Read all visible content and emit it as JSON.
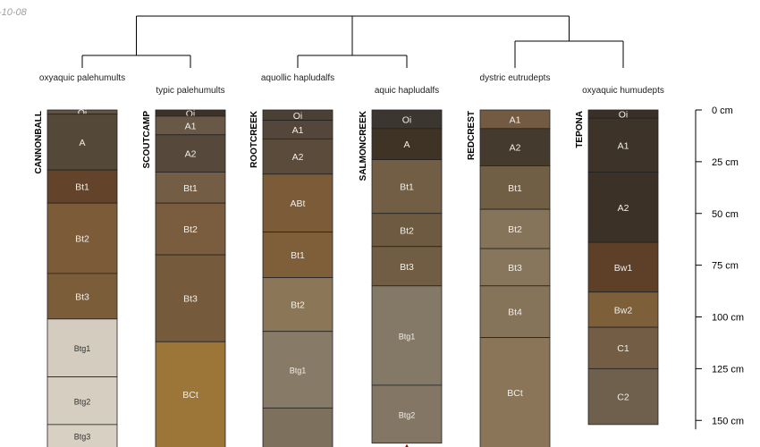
{
  "date_stamp": "-10-08",
  "axis": {
    "unit": "cm",
    "ticks": [
      {
        "depth": 0,
        "label": "0 cm"
      },
      {
        "depth": 25,
        "label": "25 cm"
      },
      {
        "depth": 50,
        "label": "50 cm"
      },
      {
        "depth": 75,
        "label": "75 cm"
      },
      {
        "depth": 100,
        "label": "100 cm"
      },
      {
        "depth": 125,
        "label": "125 cm"
      },
      {
        "depth": 150,
        "label": "150 cm"
      }
    ]
  },
  "taxa": [
    {
      "name": "oxyaquic palehumults"
    },
    {
      "name": "typic palehumults"
    },
    {
      "name": "aquollic hapludalfs"
    },
    {
      "name": "aquic hapludalfs"
    },
    {
      "name": "dystric eutrudepts"
    },
    {
      "name": "oxyaquic humudepts"
    }
  ],
  "profiles": [
    {
      "id": "CANNONBALL",
      "horizons": [
        {
          "name": "Oi",
          "top": 0,
          "bottom": 2,
          "color": "#5f5446"
        },
        {
          "name": "A",
          "top": 2,
          "bottom": 29,
          "color": "#544838"
        },
        {
          "name": "Bt1",
          "top": 29,
          "bottom": 45,
          "color": "#63432a"
        },
        {
          "name": "Bt2",
          "top": 45,
          "bottom": 79,
          "color": "#7c5c38"
        },
        {
          "name": "Bt3",
          "top": 79,
          "bottom": 101,
          "color": "#7b5d3a"
        },
        {
          "name": "Btg1",
          "top": 101,
          "bottom": 129,
          "color": "#d4cdbf"
        },
        {
          "name": "Btg2",
          "top": 129,
          "bottom": 152,
          "color": "#d6cfc1"
        },
        {
          "name": "Btg3",
          "top": 152,
          "bottom": 170,
          "color": "#d8d1c3"
        }
      ]
    },
    {
      "id": "SCOUTCAMP",
      "horizons": [
        {
          "name": "Oi",
          "top": 0,
          "bottom": 3,
          "color": "#3c3228"
        },
        {
          "name": "A1",
          "top": 3,
          "bottom": 12,
          "color": "#6a5846"
        },
        {
          "name": "A2",
          "top": 12,
          "bottom": 30,
          "color": "#56483a"
        },
        {
          "name": "Bt1",
          "top": 30,
          "bottom": 45,
          "color": "#735e45"
        },
        {
          "name": "Bt2",
          "top": 45,
          "bottom": 70,
          "color": "#7a5d3e"
        },
        {
          "name": "Bt3",
          "top": 70,
          "bottom": 112,
          "color": "#755b3c"
        },
        {
          "name": "BCt",
          "top": 112,
          "bottom": 170,
          "color": "#9c7538"
        }
      ]
    },
    {
      "id": "ROOTCREEK",
      "horizons": [
        {
          "name": "Oi",
          "top": 0,
          "bottom": 5,
          "color": "#4b4034"
        },
        {
          "name": "A1",
          "top": 5,
          "bottom": 14,
          "color": "#54463a"
        },
        {
          "name": "A2",
          "top": 14,
          "bottom": 31,
          "color": "#5a4b3b"
        },
        {
          "name": "ABt",
          "top": 31,
          "bottom": 59,
          "color": "#7c5c38"
        },
        {
          "name": "Bt1",
          "top": 59,
          "bottom": 81,
          "color": "#7f5e3a"
        },
        {
          "name": "Bt2",
          "top": 81,
          "bottom": 107,
          "color": "#8c7658"
        },
        {
          "name": "Btg1",
          "top": 107,
          "bottom": 144,
          "color": "#877a66"
        },
        {
          "name": "",
          "top": 144,
          "bottom": 170,
          "color": "#7d705c"
        }
      ]
    },
    {
      "id": "SALMONCREEK",
      "horizons": [
        {
          "name": "Oi",
          "top": 0,
          "bottom": 9,
          "color": "#3c3630"
        },
        {
          "name": "A",
          "top": 9,
          "bottom": 24,
          "color": "#3f3326"
        },
        {
          "name": "Bt1",
          "top": 24,
          "bottom": 50,
          "color": "#715e44"
        },
        {
          "name": "Bt2",
          "top": 50,
          "bottom": 66,
          "color": "#6d5a40"
        },
        {
          "name": "Bt3",
          "top": 66,
          "bottom": 85,
          "color": "#705d43"
        },
        {
          "name": "Btg1",
          "top": 85,
          "bottom": 133,
          "color": "#847866"
        },
        {
          "name": "Btg2",
          "top": 133,
          "bottom": 161,
          "color": "#837664"
        }
      ]
    },
    {
      "id": "REDCREST",
      "horizons": [
        {
          "name": "A1",
          "top": 0,
          "bottom": 9,
          "color": "#725a43"
        },
        {
          "name": "A2",
          "top": 9,
          "bottom": 27,
          "color": "#453a2e"
        },
        {
          "name": "Bt1",
          "top": 27,
          "bottom": 48,
          "color": "#705f45"
        },
        {
          "name": "Bt2",
          "top": 48,
          "bottom": 67,
          "color": "#85735a"
        },
        {
          "name": "Bt3",
          "top": 67,
          "bottom": 85,
          "color": "#87765c"
        },
        {
          "name": "Bt4",
          "top": 85,
          "bottom": 110,
          "color": "#86745a"
        },
        {
          "name": "BCt",
          "top": 110,
          "bottom": 170,
          "color": "#8a7558"
        }
      ]
    },
    {
      "id": "TEPONA",
      "horizons": [
        {
          "name": "Oi",
          "top": 0,
          "bottom": 4,
          "color": "#3a3028"
        },
        {
          "name": "A1",
          "top": 4,
          "bottom": 30,
          "color": "#3e3328"
        },
        {
          "name": "A2",
          "top": 30,
          "bottom": 64,
          "color": "#3c3126"
        },
        {
          "name": "Bw1",
          "top": 64,
          "bottom": 88,
          "color": "#5e4028"
        },
        {
          "name": "Bw2",
          "top": 88,
          "bottom": 105,
          "color": "#7d5f3a"
        },
        {
          "name": "C1",
          "top": 105,
          "bottom": 125,
          "color": "#735d45"
        },
        {
          "name": "C2",
          "top": 125,
          "bottom": 152,
          "color": "#6e604d"
        }
      ]
    }
  ]
}
